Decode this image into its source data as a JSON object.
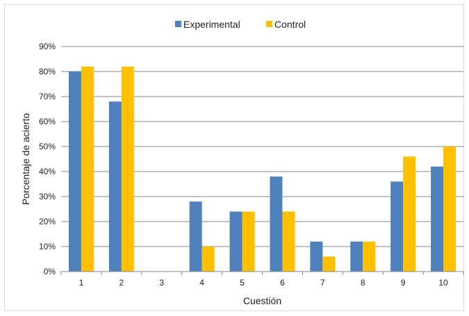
{
  "chart_data": {
    "type": "bar",
    "categories": [
      "1",
      "2",
      "3",
      "4",
      "5",
      "6",
      "7",
      "8",
      "9",
      "10"
    ],
    "series": [
      {
        "name": "Experimental",
        "color": "#4f81bd",
        "values": [
          80,
          68,
          0,
          28,
          24,
          38,
          12,
          12,
          36,
          42
        ]
      },
      {
        "name": "Control",
        "color": "#ffc000",
        "values": [
          82,
          82,
          0,
          10,
          24,
          24,
          6,
          12,
          46,
          50
        ]
      }
    ],
    "xlabel": "Cuestión",
    "ylabel": "Porcentaje de acierto",
    "ylim": [
      0,
      90
    ],
    "yticks": [
      "0%",
      "10%",
      "20%",
      "30%",
      "40%",
      "50%",
      "60%",
      "70%",
      "80%",
      "90%"
    ],
    "grid": true,
    "legend_position": "top"
  }
}
